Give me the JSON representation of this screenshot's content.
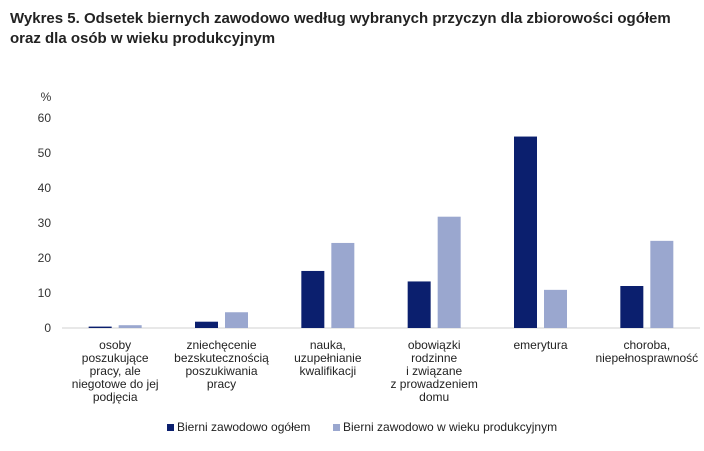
{
  "title": "Wykres 5. Odsetek biernych zawodowo według wybranych przyczyn dla zbiorowości ogółem oraz dla osób w wieku produkcyjnym",
  "chart_data": {
    "type": "bar",
    "ylabel": "%",
    "ylim": [
      0,
      60
    ],
    "yticks": [
      0,
      10,
      20,
      30,
      40,
      50,
      60
    ],
    "grid": false,
    "legend_position": "bottom",
    "categories": [
      [
        "osoby",
        "poszukujące",
        "pracy, ale",
        "niegotowe do jej",
        "podjęcia"
      ],
      [
        "zniechęcenie",
        "bezskutecznością",
        "poszukiwania",
        "pracy"
      ],
      [
        "nauka,",
        "uzupełnianie",
        "kwalifikacji"
      ],
      [
        "obowiązki",
        "rodzinne",
        "i związane",
        "z prowadzeniem",
        "domu"
      ],
      [
        "emerytura"
      ],
      [
        "choroba,",
        "niepełnosprawność"
      ]
    ],
    "series": [
      {
        "name": "Bierni zawodowo ogółem",
        "color": "#0b1f6e",
        "values": [
          0.4,
          1.8,
          16.3,
          13.3,
          54.7,
          12.0
        ]
      },
      {
        "name": "Bierni zawodowo w wieku produkcyjnym",
        "color": "#9aa7cf",
        "values": [
          0.8,
          4.5,
          24.3,
          31.8,
          10.9,
          24.9
        ]
      }
    ]
  }
}
